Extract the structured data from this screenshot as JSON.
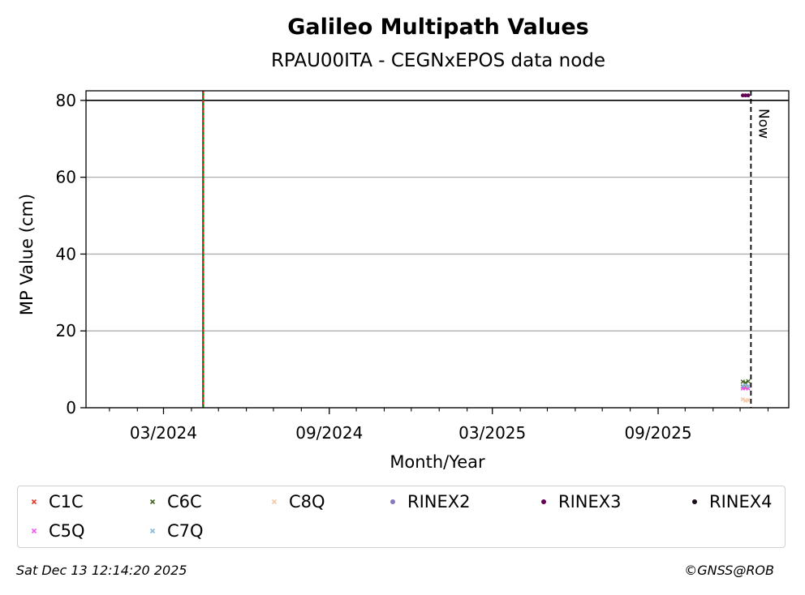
{
  "chart_data": {
    "type": "scatter",
    "title": "Galileo Multipath Values",
    "subtitle": "RPAU00ITA - CEGNxEPOS data node",
    "xlabel": "Month/Year",
    "ylabel": "MP Value (cm)",
    "x_type": "date",
    "xlim": [
      "2023-12-06",
      "2026-01-24"
    ],
    "ylim": [
      0,
      82.5
    ],
    "x_ticks": [
      {
        "date": "2024-03-01",
        "label": "03/2024"
      },
      {
        "date": "2024-09-01",
        "label": "09/2024"
      },
      {
        "date": "2025-03-01",
        "label": "03/2025"
      },
      {
        "date": "2025-09-01",
        "label": "09/2025"
      }
    ],
    "x_minor_ticks": [
      "2024-01-01",
      "2024-02-01",
      "2024-04-01",
      "2024-05-01",
      "2024-06-01",
      "2024-07-01",
      "2024-08-01",
      "2024-10-01",
      "2024-11-01",
      "2024-12-01",
      "2025-01-01",
      "2025-02-01",
      "2025-04-01",
      "2025-05-01",
      "2025-06-01",
      "2025-07-01",
      "2025-08-01",
      "2025-10-01",
      "2025-11-01",
      "2025-12-01",
      "2026-01-01"
    ],
    "y_ticks": [
      0,
      20,
      40,
      60,
      80
    ],
    "grid": "y",
    "threshold_line": 80,
    "event_line": {
      "date": "2024-04-14",
      "colors": [
        "#008000",
        "#d62728"
      ]
    },
    "now_line": {
      "date": "2025-12-13",
      "label": "Now"
    },
    "legend_position": "bottom",
    "series": [
      {
        "name": "C1C",
        "marker": "x",
        "color": "#e8342a",
        "points": [
          {
            "x": "2025-12-04",
            "y": 5.5
          },
          {
            "x": "2025-12-07",
            "y": 5.4
          },
          {
            "x": "2025-12-10",
            "y": 5.6
          }
        ]
      },
      {
        "name": "C5Q",
        "marker": "x",
        "color": "#ee55ee",
        "points": [
          {
            "x": "2025-12-04",
            "y": 5.0
          },
          {
            "x": "2025-12-07",
            "y": 5.1
          },
          {
            "x": "2025-12-10",
            "y": 5.0
          }
        ]
      },
      {
        "name": "C6C",
        "marker": "x",
        "color": "#446622",
        "points": [
          {
            "x": "2025-12-04",
            "y": 6.8
          },
          {
            "x": "2025-12-07",
            "y": 6.5
          },
          {
            "x": "2025-12-10",
            "y": 6.9
          }
        ]
      },
      {
        "name": "C7Q",
        "marker": "x",
        "color": "#88bbdd",
        "points": [
          {
            "x": "2025-12-04",
            "y": 5.7
          },
          {
            "x": "2025-12-07",
            "y": 5.8
          },
          {
            "x": "2025-12-10",
            "y": 5.6
          }
        ]
      },
      {
        "name": "C8Q",
        "marker": "x",
        "color": "#f5c8a8",
        "points": [
          {
            "x": "2025-12-04",
            "y": 2.2
          },
          {
            "x": "2025-12-07",
            "y": 1.8
          },
          {
            "x": "2025-12-10",
            "y": 2.0
          }
        ]
      },
      {
        "name": "RINEX2",
        "marker": "o",
        "color": "#8877bb",
        "points": []
      },
      {
        "name": "RINEX3",
        "marker": "o",
        "color": "#660055",
        "points": [
          {
            "x": "2025-12-04",
            "y": 81.3
          },
          {
            "x": "2025-12-07",
            "y": 81.3
          },
          {
            "x": "2025-12-10",
            "y": 81.3
          }
        ]
      },
      {
        "name": "RINEX4",
        "marker": "o",
        "color": "#1a0a1a",
        "points": []
      }
    ]
  },
  "footer": {
    "timestamp": "Sat Dec 13 12:14:20 2025",
    "copyright": "©GNSS@ROB"
  }
}
